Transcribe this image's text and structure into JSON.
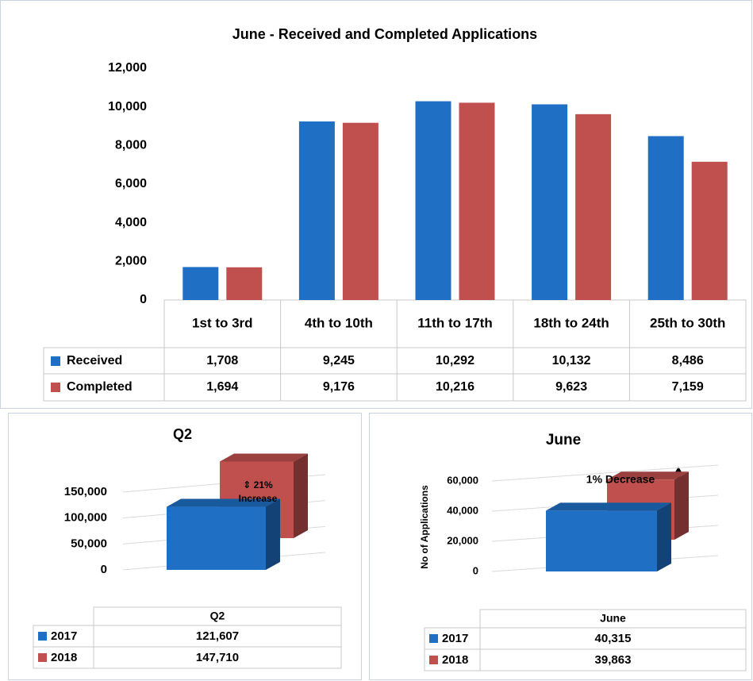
{
  "chart_data": [
    {
      "type": "bar",
      "title": "June - Received and Completed Applications",
      "categories": [
        "1st to 3rd",
        "4th to 10th",
        "11th to 17th",
        "18th to 24th",
        "25th to 30th"
      ],
      "series": [
        {
          "name": "Received",
          "color": "#1f6fc5",
          "values": [
            1708,
            9245,
            10292,
            10132,
            8486
          ],
          "value_labels": [
            "1,708",
            "9,245",
            "10,292",
            "10,132",
            "8,486"
          ]
        },
        {
          "name": "Completed",
          "color": "#c0504d",
          "values": [
            1694,
            9176,
            10216,
            9623,
            7159
          ],
          "value_labels": [
            "1,694",
            "9,176",
            "10,216",
            "9,623",
            "7,159"
          ]
        }
      ],
      "ylim": [
        0,
        12000
      ],
      "yticks": [
        0,
        {
          "value": 2000,
          "label": "2,000"
        },
        {
          "value": 4000,
          "label": "4,000"
        },
        {
          "value": 6000,
          "label": "6,000"
        },
        {
          "value": 8000,
          "label": "8,000"
        },
        {
          "value": 10000,
          "label": "10,000"
        },
        {
          "value": 12000,
          "label": "12,000"
        }
      ],
      "grid": false
    },
    {
      "type": "bar3d",
      "title": "Q2",
      "categories": [
        "Q2"
      ],
      "series": [
        {
          "name": "2017",
          "color": "#1f6fc5",
          "values": [
            121607
          ],
          "value_labels": [
            "121,607"
          ]
        },
        {
          "name": "2018",
          "color": "#c0504d",
          "values": [
            147710
          ],
          "value_labels": [
            "147,710"
          ]
        }
      ],
      "ylim": [
        0,
        150000
      ],
      "yticks": [
        0,
        {
          "value": 50000,
          "label": "50,000"
        },
        {
          "value": 100000,
          "label": "100,000"
        },
        {
          "value": 150000,
          "label": "150,000"
        }
      ],
      "annotation": [
        "⇕ 21%",
        "Increase"
      ],
      "grid": true
    },
    {
      "type": "bar3d",
      "title": "June",
      "ylabel": "No of Applications",
      "categories": [
        "June"
      ],
      "series": [
        {
          "name": "2017",
          "color": "#1f6fc5",
          "values": [
            40315
          ],
          "value_labels": [
            "40,315"
          ]
        },
        {
          "name": "2018",
          "color": "#c0504d",
          "values": [
            39863
          ],
          "value_labels": [
            "39,863"
          ]
        }
      ],
      "ylim": [
        0,
        60000
      ],
      "yticks": [
        0,
        {
          "value": 20000,
          "label": "20,000"
        },
        {
          "value": 40000,
          "label": "40,000"
        },
        {
          "value": 60000,
          "label": "60,000"
        }
      ],
      "annotation": [
        "1% Decrease"
      ],
      "grid": true
    }
  ]
}
